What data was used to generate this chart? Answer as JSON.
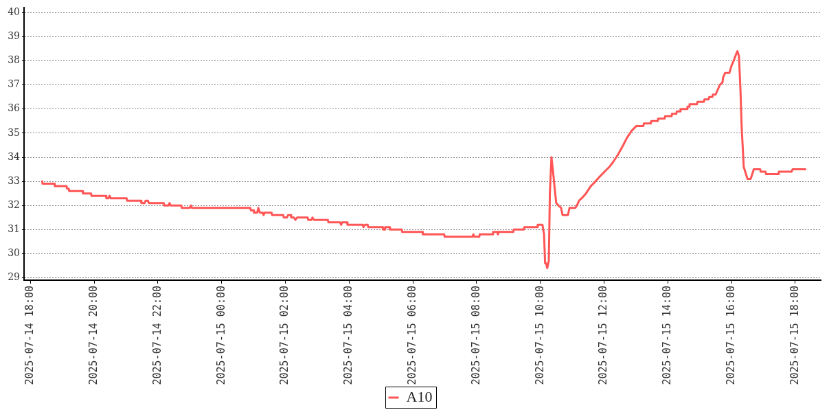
{
  "chart_data": {
    "type": "line",
    "x": [
      "2025-07-14T18:22",
      "2025-07-14T18:23",
      "2025-07-14T18:45",
      "2025-07-14T18:46",
      "2025-07-14T19:08",
      "2025-07-14T19:09",
      "2025-07-14T19:12",
      "2025-07-14T19:13",
      "2025-07-14T19:38",
      "2025-07-14T19:39",
      "2025-07-14T19:54",
      "2025-07-14T19:55",
      "2025-07-14T20:22",
      "2025-07-14T20:23",
      "2025-07-14T20:27",
      "2025-07-14T20:29",
      "2025-07-14T20:31",
      "2025-07-14T21:01",
      "2025-07-14T21:02",
      "2025-07-14T21:28",
      "2025-07-14T21:29",
      "2025-07-14T21:35",
      "2025-07-14T21:37",
      "2025-07-14T21:41",
      "2025-07-14T21:43",
      "2025-07-14T22:11",
      "2025-07-14T22:12",
      "2025-07-14T22:20",
      "2025-07-14T22:22",
      "2025-07-14T22:24",
      "2025-07-14T22:44",
      "2025-07-14T22:45",
      "2025-07-14T23:00",
      "2025-07-14T23:02",
      "2025-07-14T23:04",
      "2025-07-15T00:54",
      "2025-07-15T00:55",
      "2025-07-15T01:00",
      "2025-07-15T01:01",
      "2025-07-15T01:07",
      "2025-07-15T01:09",
      "2025-07-15T01:12",
      "2025-07-15T01:17",
      "2025-07-15T01:19",
      "2025-07-15T01:21",
      "2025-07-15T01:34",
      "2025-07-15T01:35",
      "2025-07-15T01:56",
      "2025-07-15T01:57",
      "2025-07-15T02:03",
      "2025-07-15T02:05",
      "2025-07-15T02:10",
      "2025-07-15T02:11",
      "2025-07-15T02:16",
      "2025-07-15T02:19",
      "2025-07-15T02:22",
      "2025-07-15T02:42",
      "2025-07-15T02:43",
      "2025-07-15T02:49",
      "2025-07-15T02:51",
      "2025-07-15T02:54",
      "2025-07-15T03:20",
      "2025-07-15T03:21",
      "2025-07-15T03:43",
      "2025-07-15T03:45",
      "2025-07-15T03:47",
      "2025-07-15T03:56",
      "2025-07-15T03:57",
      "2025-07-15T04:26",
      "2025-07-15T04:27",
      "2025-07-15T04:30",
      "2025-07-15T04:35",
      "2025-07-15T04:36",
      "2025-07-15T05:03",
      "2025-07-15T05:04",
      "2025-07-15T05:07",
      "2025-07-15T05:08",
      "2025-07-15T05:16",
      "2025-07-15T05:17",
      "2025-07-15T05:39",
      "2025-07-15T05:40",
      "2025-07-15T06:18",
      "2025-07-15T06:19",
      "2025-07-15T06:59",
      "2025-07-15T07:00",
      "2025-07-15T07:52",
      "2025-07-15T07:54",
      "2025-07-15T07:56",
      "2025-07-15T08:05",
      "2025-07-15T08:06",
      "2025-07-15T08:30",
      "2025-07-15T08:31",
      "2025-07-15T08:39",
      "2025-07-15T08:40",
      "2025-07-15T08:42",
      "2025-07-15T09:09",
      "2025-07-15T09:10",
      "2025-07-15T09:29",
      "2025-07-15T09:30",
      "2025-07-15T09:54",
      "2025-07-15T09:55",
      "2025-07-15T10:04",
      "2025-07-15T10:07",
      "2025-07-15T10:09",
      "2025-07-15T10:11",
      "2025-07-15T10:13",
      "2025-07-15T10:16",
      "2025-07-15T10:18",
      "2025-07-15T10:21",
      "2025-07-15T10:24",
      "2025-07-15T10:28",
      "2025-07-15T10:30",
      "2025-07-15T10:34",
      "2025-07-15T10:39",
      "2025-07-15T10:42",
      "2025-07-15T10:52",
      "2025-07-15T10:55",
      "2025-07-15T11:06",
      "2025-07-15T11:09",
      "2025-07-15T11:13",
      "2025-07-15T11:18",
      "2025-07-15T11:26",
      "2025-07-15T11:35",
      "2025-07-15T11:44",
      "2025-07-15T11:52",
      "2025-07-15T12:01",
      "2025-07-15T12:10",
      "2025-07-15T12:17",
      "2025-07-15T12:26",
      "2025-07-15T12:36",
      "2025-07-15T12:43",
      "2025-07-15T12:52",
      "2025-07-15T13:01",
      "2025-07-15T13:14",
      "2025-07-15T13:15",
      "2025-07-15T13:28",
      "2025-07-15T13:29",
      "2025-07-15T13:41",
      "2025-07-15T13:42",
      "2025-07-15T13:54",
      "2025-07-15T13:55",
      "2025-07-15T14:07",
      "2025-07-15T14:08",
      "2025-07-15T14:16",
      "2025-07-15T14:17",
      "2025-07-15T14:23",
      "2025-07-15T14:24",
      "2025-07-15T14:36",
      "2025-07-15T14:37",
      "2025-07-15T14:40",
      "2025-07-15T14:41",
      "2025-07-15T14:55",
      "2025-07-15T14:56",
      "2025-07-15T15:08",
      "2025-07-15T15:09",
      "2025-07-15T15:17",
      "2025-07-15T15:18",
      "2025-07-15T15:24",
      "2025-07-15T15:25",
      "2025-07-15T15:30",
      "2025-07-15T15:34",
      "2025-07-15T15:38",
      "2025-07-15T15:43",
      "2025-07-15T15:44",
      "2025-07-15T15:48",
      "2025-07-15T15:56",
      "2025-07-15T16:00",
      "2025-07-15T16:04",
      "2025-07-15T16:09",
      "2025-07-15T16:11",
      "2025-07-15T16:14",
      "2025-07-15T16:17",
      "2025-07-15T16:19",
      "2025-07-15T16:23",
      "2025-07-15T16:30",
      "2025-07-15T16:36",
      "2025-07-15T16:42",
      "2025-07-15T16:54",
      "2025-07-15T16:55",
      "2025-07-15T17:04",
      "2025-07-15T17:05",
      "2025-07-15T17:28",
      "2025-07-15T17:29",
      "2025-07-15T17:53",
      "2025-07-15T17:55",
      "2025-07-15T18:19"
    ],
    "series": [
      {
        "name": "A10",
        "color": "#ff5555",
        "values": [
          33.0,
          32.9,
          32.9,
          32.8,
          32.8,
          32.7,
          32.7,
          32.6,
          32.6,
          32.5,
          32.5,
          32.4,
          32.4,
          32.3,
          32.3,
          32.4,
          32.3,
          32.3,
          32.2,
          32.2,
          32.1,
          32.1,
          32.2,
          32.2,
          32.1,
          32.1,
          32.0,
          32.0,
          32.1,
          32.0,
          32.0,
          31.9,
          31.9,
          32.0,
          31.9,
          31.9,
          31.8,
          31.8,
          31.7,
          31.7,
          31.9,
          31.7,
          31.7,
          31.6,
          31.7,
          31.7,
          31.6,
          31.6,
          31.5,
          31.5,
          31.6,
          31.6,
          31.5,
          31.5,
          31.4,
          31.5,
          31.5,
          31.4,
          31.4,
          31.5,
          31.4,
          31.4,
          31.3,
          31.3,
          31.2,
          31.3,
          31.3,
          31.2,
          31.2,
          31.1,
          31.2,
          31.2,
          31.1,
          31.1,
          31.0,
          31.0,
          31.1,
          31.1,
          31.0,
          31.0,
          30.9,
          30.9,
          30.8,
          30.8,
          30.7,
          30.7,
          30.8,
          30.7,
          30.7,
          30.8,
          30.8,
          30.9,
          30.9,
          30.8,
          30.9,
          30.9,
          31.0,
          31.0,
          31.1,
          31.1,
          31.2,
          31.2,
          30.8,
          29.6,
          29.6,
          29.4,
          29.7,
          32.5,
          34.0,
          33.4,
          32.5,
          32.1,
          32.0,
          31.9,
          31.6,
          31.6,
          31.9,
          31.9,
          32.0,
          32.2,
          32.3,
          32.5,
          32.8,
          33.0,
          33.2,
          33.4,
          33.6,
          33.8,
          34.1,
          34.5,
          34.8,
          35.1,
          35.3,
          35.3,
          35.4,
          35.4,
          35.5,
          35.5,
          35.6,
          35.6,
          35.7,
          35.7,
          35.8,
          35.8,
          35.9,
          35.9,
          36.0,
          36.0,
          36.1,
          36.1,
          36.2,
          36.2,
          36.3,
          36.3,
          36.4,
          36.4,
          36.5,
          36.5,
          36.6,
          36.6,
          36.8,
          37.0,
          37.1,
          37.3,
          37.5,
          37.5,
          37.8,
          38.0,
          38.3,
          38.4,
          38.2,
          36.7,
          35.3,
          33.6,
          33.1,
          33.1,
          33.5,
          33.5,
          33.4,
          33.4,
          33.3,
          33.3,
          33.4,
          33.4,
          33.5,
          33.5
        ]
      }
    ],
    "xlim": [
      "2025-07-14T17:48",
      "2025-07-15T18:48"
    ],
    "xticks": [
      {
        "value": "2025-07-14T18:00",
        "label": "2025-07-14 18:00"
      },
      {
        "value": "2025-07-14T20:00",
        "label": "2025-07-14 20:00"
      },
      {
        "value": "2025-07-14T22:00",
        "label": "2025-07-14 22:00"
      },
      {
        "value": "2025-07-15T00:00",
        "label": "2025-07-15 00:00"
      },
      {
        "value": "2025-07-15T02:00",
        "label": "2025-07-15 02:00"
      },
      {
        "value": "2025-07-15T04:00",
        "label": "2025-07-15 04:00"
      },
      {
        "value": "2025-07-15T06:00",
        "label": "2025-07-15 06:00"
      },
      {
        "value": "2025-07-15T08:00",
        "label": "2025-07-15 08:00"
      },
      {
        "value": "2025-07-15T10:00",
        "label": "2025-07-15 10:00"
      },
      {
        "value": "2025-07-15T12:00",
        "label": "2025-07-15 12:00"
      },
      {
        "value": "2025-07-15T14:00",
        "label": "2025-07-15 14:00"
      },
      {
        "value": "2025-07-15T16:00",
        "label": "2025-07-15 16:00"
      },
      {
        "value": "2025-07-15T18:00",
        "label": "2025-07-15 18:00"
      }
    ],
    "ylim": [
      28.9,
      40.2
    ],
    "yticks": [
      29,
      30,
      31,
      32,
      33,
      34,
      35,
      36,
      37,
      38,
      39,
      40
    ],
    "grid": "y",
    "legend": "bottom"
  }
}
